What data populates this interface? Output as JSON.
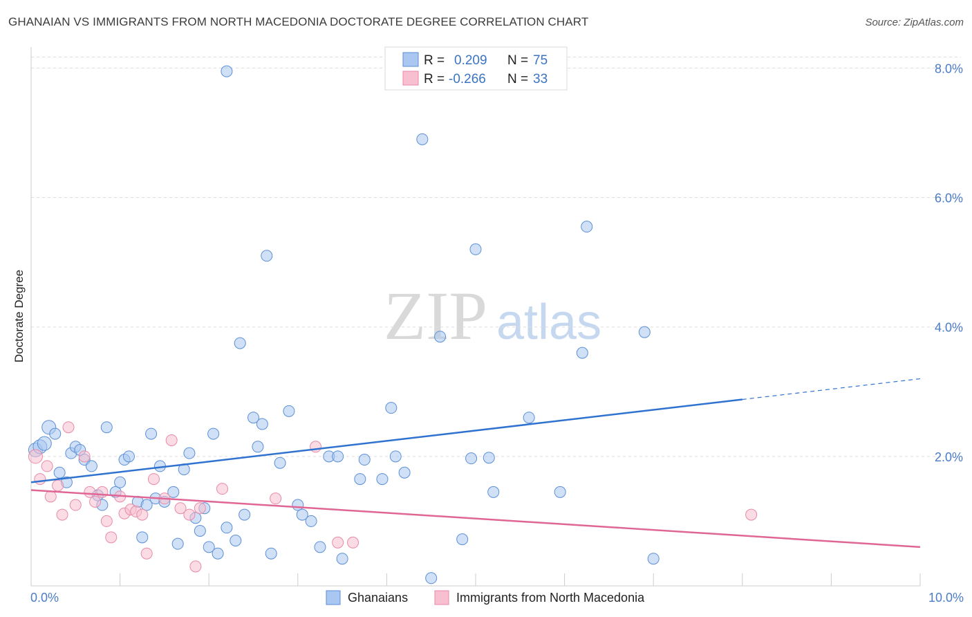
{
  "header": {
    "title": "GHANAIAN VS IMMIGRANTS FROM NORTH MACEDONIA DOCTORATE DEGREE CORRELATION CHART",
    "source": "Source: ZipAtlas.com"
  },
  "watermark": {
    "zip": "ZIP",
    "atlas": "atlas"
  },
  "legend": {
    "rows": [
      {
        "r_label": "R =",
        "r_value": "0.209",
        "n_label": "N =",
        "n_value": "75",
        "color": "#a9c7f0",
        "edge": "#5b8fd6"
      },
      {
        "r_label": "R =",
        "r_value": "-0.266",
        "n_label": "N =",
        "n_value": "33",
        "color": "#f7bfd0",
        "edge": "#e88aa8"
      }
    ]
  },
  "bottom_legend": [
    {
      "label": "Ghanaians",
      "color": "#a9c7f0",
      "edge": "#5b8fd6"
    },
    {
      "label": "Immigrants from North Macedonia",
      "color": "#f7bfd0",
      "edge": "#e88aa8"
    }
  ],
  "chart_data": {
    "type": "scatter",
    "xlabel": "",
    "ylabel": "Doctorate Degree",
    "xlim": [
      0,
      10
    ],
    "ylim": [
      0,
      8.25
    ],
    "x_tick_labels": {
      "min": "0.0%",
      "max": "10.0%"
    },
    "y_ticks": [
      {
        "value": 2,
        "label": "2.0%"
      },
      {
        "value": 4,
        "label": "4.0%"
      },
      {
        "value": 6,
        "label": "6.0%"
      },
      {
        "value": 8,
        "label": "8.0%"
      }
    ],
    "grid": "horizontal-dashed",
    "legend_position": "top-center",
    "series": [
      {
        "name": "Ghanaians",
        "color": "#a9c7f0",
        "edge": "#5b8fd6",
        "trend": {
          "x0": 0,
          "y0": 1.6,
          "x1": 8.0,
          "y1": 2.88,
          "dash_to_x": 10,
          "dash_to_y": 3.2,
          "color": "#2f72d0"
        },
        "points": [
          [
            0.05,
            2.1
          ],
          [
            0.1,
            2.15
          ],
          [
            0.15,
            2.2
          ],
          [
            0.2,
            2.45
          ],
          [
            0.27,
            2.35
          ],
          [
            0.32,
            1.75
          ],
          [
            0.4,
            1.6
          ],
          [
            0.45,
            2.05
          ],
          [
            0.5,
            2.15
          ],
          [
            0.55,
            2.1
          ],
          [
            0.6,
            1.95
          ],
          [
            0.68,
            1.85
          ],
          [
            0.75,
            1.4
          ],
          [
            0.8,
            1.25
          ],
          [
            0.85,
            2.45
          ],
          [
            0.95,
            1.45
          ],
          [
            1.0,
            1.6
          ],
          [
            1.05,
            1.95
          ],
          [
            1.1,
            2.0
          ],
          [
            1.2,
            1.3
          ],
          [
            1.25,
            0.75
          ],
          [
            1.3,
            1.25
          ],
          [
            1.35,
            2.35
          ],
          [
            1.4,
            1.35
          ],
          [
            1.45,
            1.85
          ],
          [
            1.5,
            1.3
          ],
          [
            1.6,
            1.45
          ],
          [
            1.65,
            0.65
          ],
          [
            1.72,
            1.8
          ],
          [
            1.78,
            2.05
          ],
          [
            1.85,
            1.05
          ],
          [
            1.9,
            0.85
          ],
          [
            1.95,
            1.2
          ],
          [
            2.0,
            0.6
          ],
          [
            2.05,
            2.35
          ],
          [
            2.1,
            0.5
          ],
          [
            2.2,
            0.9
          ],
          [
            2.3,
            0.7
          ],
          [
            2.35,
            3.75
          ],
          [
            2.4,
            1.1
          ],
          [
            2.5,
            2.6
          ],
          [
            2.55,
            2.15
          ],
          [
            2.6,
            2.5
          ],
          [
            2.65,
            5.1
          ],
          [
            2.7,
            0.5
          ],
          [
            2.8,
            1.9
          ],
          [
            2.9,
            2.7
          ],
          [
            3.0,
            1.25
          ],
          [
            3.05,
            1.1
          ],
          [
            3.15,
            1.0
          ],
          [
            3.25,
            0.6
          ],
          [
            3.35,
            2.0
          ],
          [
            3.45,
            2.0
          ],
          [
            3.5,
            0.42
          ],
          [
            3.7,
            1.65
          ],
          [
            3.75,
            1.95
          ],
          [
            3.95,
            1.65
          ],
          [
            4.05,
            2.75
          ],
          [
            4.1,
            2.0
          ],
          [
            4.2,
            1.75
          ],
          [
            4.4,
            6.9
          ],
          [
            4.5,
            0.12
          ],
          [
            4.6,
            3.85
          ],
          [
            4.85,
            0.72
          ],
          [
            4.95,
            1.97
          ],
          [
            5.0,
            5.2
          ],
          [
            5.15,
            1.98
          ],
          [
            5.2,
            1.45
          ],
          [
            5.6,
            2.6
          ],
          [
            5.95,
            1.45
          ],
          [
            6.2,
            3.6
          ],
          [
            6.25,
            5.55
          ],
          [
            6.9,
            3.92
          ],
          [
            7.0,
            0.42
          ],
          [
            2.2,
            7.95
          ]
        ]
      },
      {
        "name": "Immigrants from North Macedonia",
        "color": "#f7bfd0",
        "edge": "#e88aa8",
        "trend": {
          "x0": 0,
          "y0": 1.48,
          "x1": 10,
          "y1": 0.6,
          "color": "#e06694"
        },
        "points": [
          [
            0.05,
            2.0
          ],
          [
            0.1,
            1.65
          ],
          [
            0.18,
            1.85
          ],
          [
            0.22,
            1.38
          ],
          [
            0.3,
            1.55
          ],
          [
            0.35,
            1.1
          ],
          [
            0.42,
            2.45
          ],
          [
            0.5,
            1.25
          ],
          [
            0.6,
            2.0
          ],
          [
            0.66,
            1.45
          ],
          [
            0.72,
            1.3
          ],
          [
            0.8,
            1.45
          ],
          [
            0.85,
            1.0
          ],
          [
            0.9,
            0.75
          ],
          [
            1.0,
            1.38
          ],
          [
            1.05,
            1.12
          ],
          [
            1.12,
            1.18
          ],
          [
            1.18,
            1.15
          ],
          [
            1.25,
            1.1
          ],
          [
            1.3,
            0.5
          ],
          [
            1.38,
            1.65
          ],
          [
            1.5,
            1.35
          ],
          [
            1.58,
            2.25
          ],
          [
            1.68,
            1.2
          ],
          [
            1.78,
            1.1
          ],
          [
            1.85,
            0.3
          ],
          [
            1.9,
            1.2
          ],
          [
            2.15,
            1.5
          ],
          [
            2.75,
            1.35
          ],
          [
            3.2,
            2.15
          ],
          [
            3.45,
            0.67
          ],
          [
            3.62,
            0.67
          ],
          [
            8.1,
            1.1
          ]
        ]
      }
    ]
  }
}
